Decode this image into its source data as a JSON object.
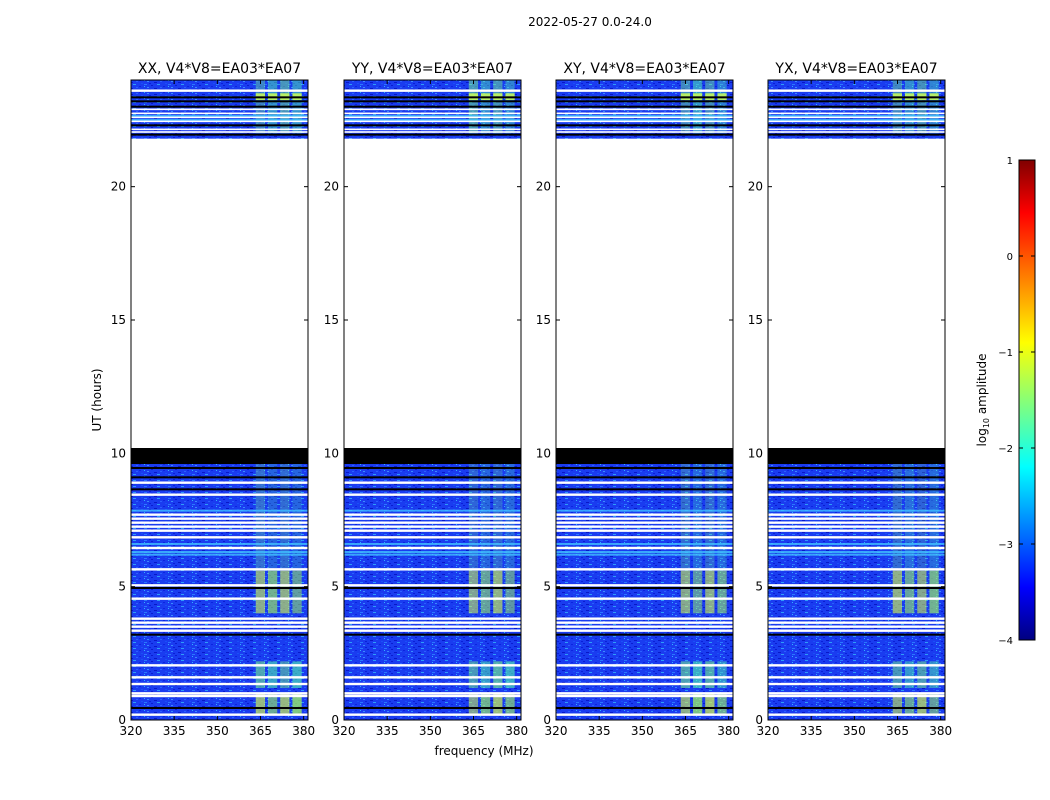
{
  "suptitle": "2022-05-27 0.0-24.0",
  "chart_data": {
    "type": "heatmap",
    "panels": [
      {
        "title": "XX, V4*V8=EA03*EA07"
      },
      {
        "title": "YY, V4*V8=EA03*EA07"
      },
      {
        "title": "XY, V4*V8=EA03*EA07"
      },
      {
        "title": "YX, V4*V8=EA03*EA07"
      }
    ],
    "xlabel": "frequency (MHz)",
    "ylabel": "UT (hours)",
    "xlim": [
      320,
      381.5
    ],
    "ylim": [
      0,
      24
    ],
    "xticks": [
      "320",
      "335",
      "350",
      "365",
      "380"
    ],
    "yticks": [
      "0",
      "5",
      "10",
      "15",
      "20"
    ],
    "xtick_values": [
      320,
      335,
      350,
      365,
      380
    ],
    "ytick_values": [
      0,
      5,
      10,
      15,
      20
    ],
    "rfi_band_mhz": [
      363,
      380
    ],
    "gap_hours": [
      10.2,
      21.8
    ],
    "flagged_block_hours": [
      9.6,
      10.2
    ],
    "colorbar": {
      "label": "log10 amplitude",
      "label_base": "log",
      "label_sub": "10",
      "label_rest": " amplitude",
      "range": [
        -4,
        1
      ],
      "ticks": [
        "1",
        "0",
        "−1",
        "−2",
        "−3",
        "−4"
      ],
      "tick_values": [
        1,
        0,
        -1,
        -2,
        -3,
        -4
      ],
      "colormap": "jet",
      "colors": [
        "#000080",
        "#0000ff",
        "#00ffff",
        "#ffff00",
        "#ff0000",
        "#800000"
      ]
    }
  }
}
